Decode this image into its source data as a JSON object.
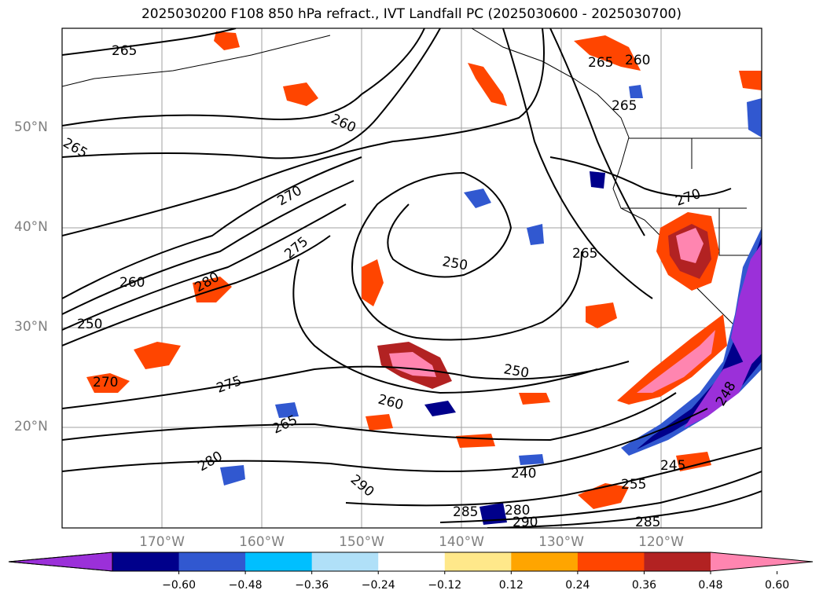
{
  "title": "2025030200 F108 850 hPa refract., IVT Landfall PC (2025030600 - 2025030700)",
  "lat_labels": [
    "50°N",
    "40°N",
    "30°N",
    "20°N"
  ],
  "lon_labels": [
    "170°W",
    "160°W",
    "150°W",
    "140°W",
    "130°W",
    "120°W"
  ],
  "contour_labels": [
    "265",
    "260",
    "265",
    "265",
    "260",
    "265",
    "270",
    "270",
    "275",
    "250",
    "265",
    "260",
    "280",
    "250",
    "270",
    "275",
    "260",
    "250",
    "265",
    "280",
    "290",
    "240",
    "245",
    "255",
    "285",
    "280",
    "290",
    "285",
    "248"
  ],
  "colorbar": {
    "ticks": [
      "−0.60",
      "−0.48",
      "−0.36",
      "−0.24",
      "−0.12",
      "0.12",
      "0.24",
      "0.36",
      "0.48",
      "0.60"
    ],
    "colors": [
      "#9b30d9",
      "#00008b",
      "#3158d0",
      "#00bfff",
      "#b0e0f8",
      "#ffffff",
      "#ffe88a",
      "#ffa500",
      "#ff4500",
      "#b22222",
      "#ff85b0"
    ]
  }
}
